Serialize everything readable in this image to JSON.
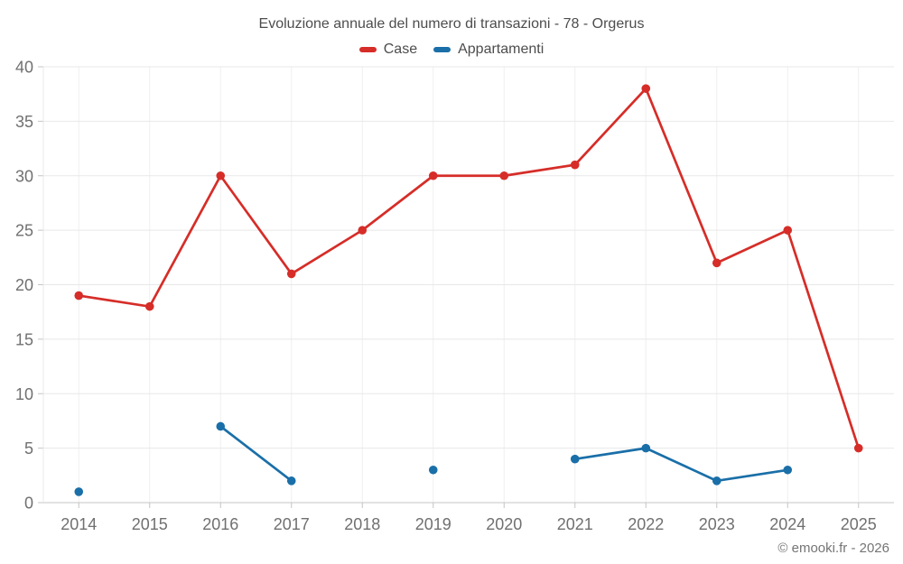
{
  "title": "Evoluzione annuale del numero di transazioni - 78 - Orgerus",
  "footer_credit": "© emooki.fr - 2026",
  "colors": {
    "case_red": "#d62d28",
    "appartamenti_blue": "#1a6fa8",
    "grid_horizontal": "#e8e8e8",
    "grid_vertical": "#efefef",
    "axis_line": "#c4c4c4",
    "tick_label": "#707070",
    "title_text": "#4d4d4d"
  },
  "chart_data": {
    "type": "line",
    "title": "Evoluzione annuale del numero di transazioni - 78 - Orgerus",
    "xlabel": "",
    "ylabel": "",
    "categories": [
      "2014",
      "2015",
      "2016",
      "2017",
      "2018",
      "2019",
      "2020",
      "2021",
      "2022",
      "2023",
      "2024",
      "2025"
    ],
    "series": [
      {
        "name": "Case",
        "color": "#d62d28",
        "values": [
          19,
          18,
          30,
          21,
          25,
          30,
          30,
          31,
          38,
          22,
          25,
          5
        ]
      },
      {
        "name": "Appartamenti",
        "color": "#1a6fa8",
        "values": [
          1,
          null,
          7,
          2,
          null,
          3,
          null,
          4,
          5,
          2,
          3,
          null
        ]
      }
    ],
    "ylim": [
      0,
      40
    ],
    "ytick_step": 5,
    "grid": true,
    "legend_position": "top",
    "markers": true
  }
}
